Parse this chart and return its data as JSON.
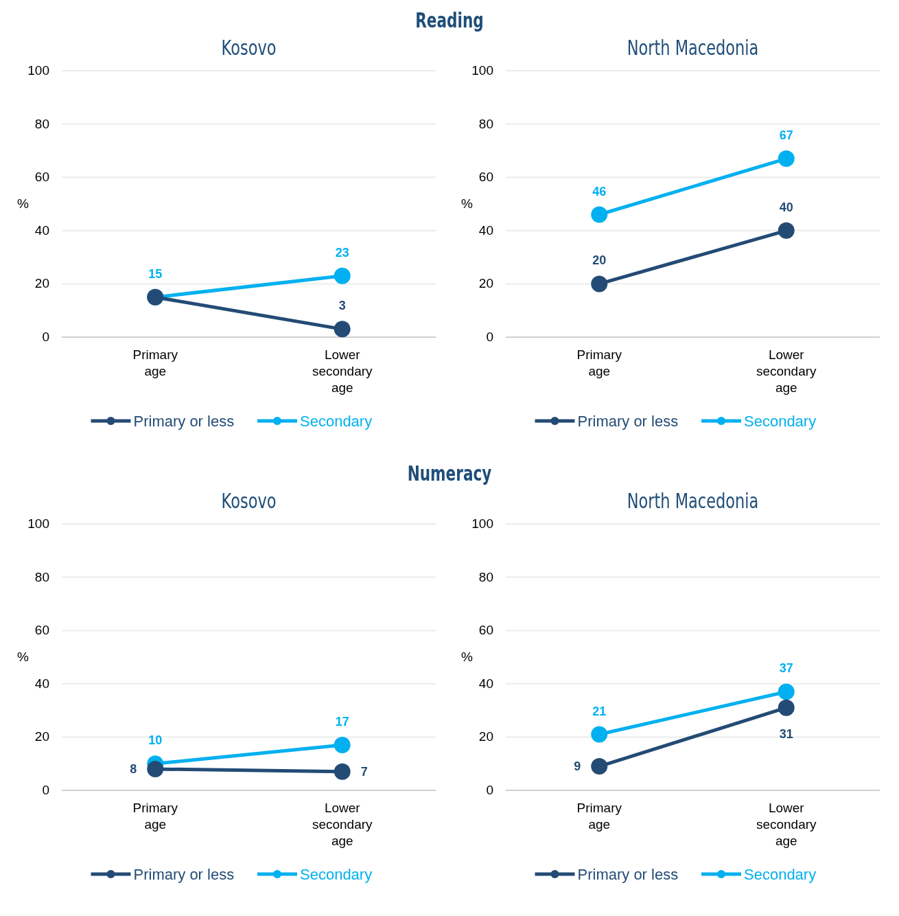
{
  "chart_data": [
    {
      "type": "line",
      "title": "Reading",
      "subtitle": "Kosovo",
      "ylabel": "%",
      "categories": [
        "Primary\nage",
        "Lower\nsecondary\nage"
      ],
      "ylim": [
        0,
        100
      ],
      "yticks": [
        0,
        20,
        40,
        60,
        80,
        100
      ],
      "grid": "y",
      "legend": "bottom",
      "marker": "circle",
      "data_labels": true,
      "series": [
        {
          "name": "Primary or less",
          "color": "#234b75",
          "values": [
            15,
            3
          ],
          "value_labels": [
            null,
            "3"
          ]
        },
        {
          "name": "Secondary",
          "color": "#00b0f0",
          "values": [
            15,
            23
          ]
        }
      ]
    },
    {
      "type": "line",
      "subtitle": "North Macedonia",
      "ylabel": "%",
      "categories": [
        "Primary\nage",
        "Lower\nsecondary\nage"
      ],
      "ylim": [
        0,
        100
      ],
      "yticks": [
        0,
        20,
        40,
        60,
        80,
        100
      ],
      "grid": "y",
      "legend": "bottom",
      "marker": "circle",
      "data_labels": true,
      "series": [
        {
          "name": "Primary or less",
          "color": "#234b75",
          "values": [
            20,
            40
          ]
        },
        {
          "name": "Secondary",
          "color": "#00b0f0",
          "values": [
            46,
            67
          ]
        }
      ]
    },
    {
      "type": "line",
      "title": "Numeracy",
      "subtitle": "Kosovo",
      "ylabel": "%",
      "categories": [
        "Primary\nage",
        "Lower\nsecondary\nage"
      ],
      "ylim": [
        0,
        100
      ],
      "yticks": [
        0,
        20,
        40,
        60,
        80,
        100
      ],
      "grid": "y",
      "legend": "bottom",
      "marker": "circle",
      "data_labels": true,
      "series": [
        {
          "name": "Primary or less",
          "color": "#234b75",
          "values": [
            8,
            7
          ]
        },
        {
          "name": "Secondary",
          "color": "#00b0f0",
          "values": [
            10,
            17
          ]
        }
      ]
    },
    {
      "type": "line",
      "subtitle": "North Macedonia",
      "ylabel": "%",
      "categories": [
        "Primary\nage",
        "Lower\nsecondary\nage"
      ],
      "ylim": [
        0,
        100
      ],
      "yticks": [
        0,
        20,
        40,
        60,
        80,
        100
      ],
      "grid": "y",
      "legend": "bottom",
      "marker": "circle",
      "data_labels": true,
      "series": [
        {
          "name": "Primary or less",
          "color": "#234b75",
          "values": [
            9,
            31
          ]
        },
        {
          "name": "Secondary",
          "color": "#00b0f0",
          "values": [
            21,
            37
          ]
        }
      ]
    }
  ]
}
